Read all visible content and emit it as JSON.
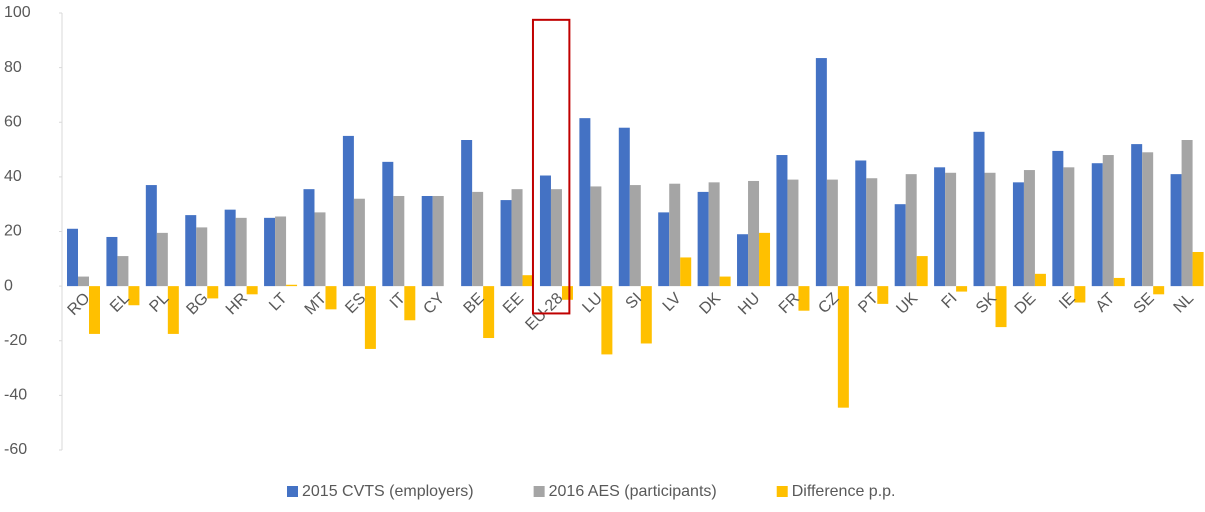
{
  "chart_data": {
    "type": "bar",
    "categories": [
      "RO",
      "EL",
      "PL",
      "BG",
      "HR",
      "LT",
      "MT",
      "ES",
      "IT",
      "CY",
      "BE",
      "EE",
      "EU-28",
      "LU",
      "SI",
      "LV",
      "DK",
      "HU",
      "FR",
      "CZ",
      "PT",
      "UK",
      "FI",
      "SK",
      "DE",
      "IE",
      "AT",
      "SE",
      "NL"
    ],
    "series": [
      {
        "name": "2015 CVTS (employers)",
        "color": "#4472c4",
        "values": [
          21,
          18,
          37,
          26,
          28,
          25,
          35.5,
          55,
          45.5,
          33,
          53.5,
          31.5,
          40.5,
          61.5,
          58,
          27,
          34.5,
          19,
          48,
          83.5,
          46,
          30,
          43.5,
          56.5,
          38,
          49.5,
          45,
          52,
          41
        ]
      },
      {
        "name": "2016 AES (participants)",
        "color": "#a5a5a5",
        "values": [
          3.5,
          11,
          19.5,
          21.5,
          25,
          25.5,
          27,
          32,
          33,
          33,
          34.5,
          35.5,
          35.5,
          36.5,
          37,
          37.5,
          38,
          38.5,
          39,
          39,
          39.5,
          41,
          41.5,
          41.5,
          42.5,
          43.5,
          48,
          49,
          53.5
        ]
      },
      {
        "name": "Difference p.p.",
        "color": "#ffc000",
        "values": [
          -17.5,
          -7,
          -17.5,
          -4.5,
          -3,
          0.5,
          -8.5,
          -23,
          -12.5,
          0,
          -19,
          4,
          -5,
          -25,
          -21,
          10.5,
          3.5,
          19.5,
          -9,
          -44.5,
          -6.5,
          11,
          -2,
          -15,
          4.5,
          -6,
          3,
          -3,
          12.5
        ]
      }
    ],
    "ylim": [
      -60,
      100
    ],
    "yticks": [
      -60,
      -40,
      -20,
      0,
      20,
      40,
      60,
      80,
      100
    ],
    "grid": false,
    "legend": "bottom"
  }
}
